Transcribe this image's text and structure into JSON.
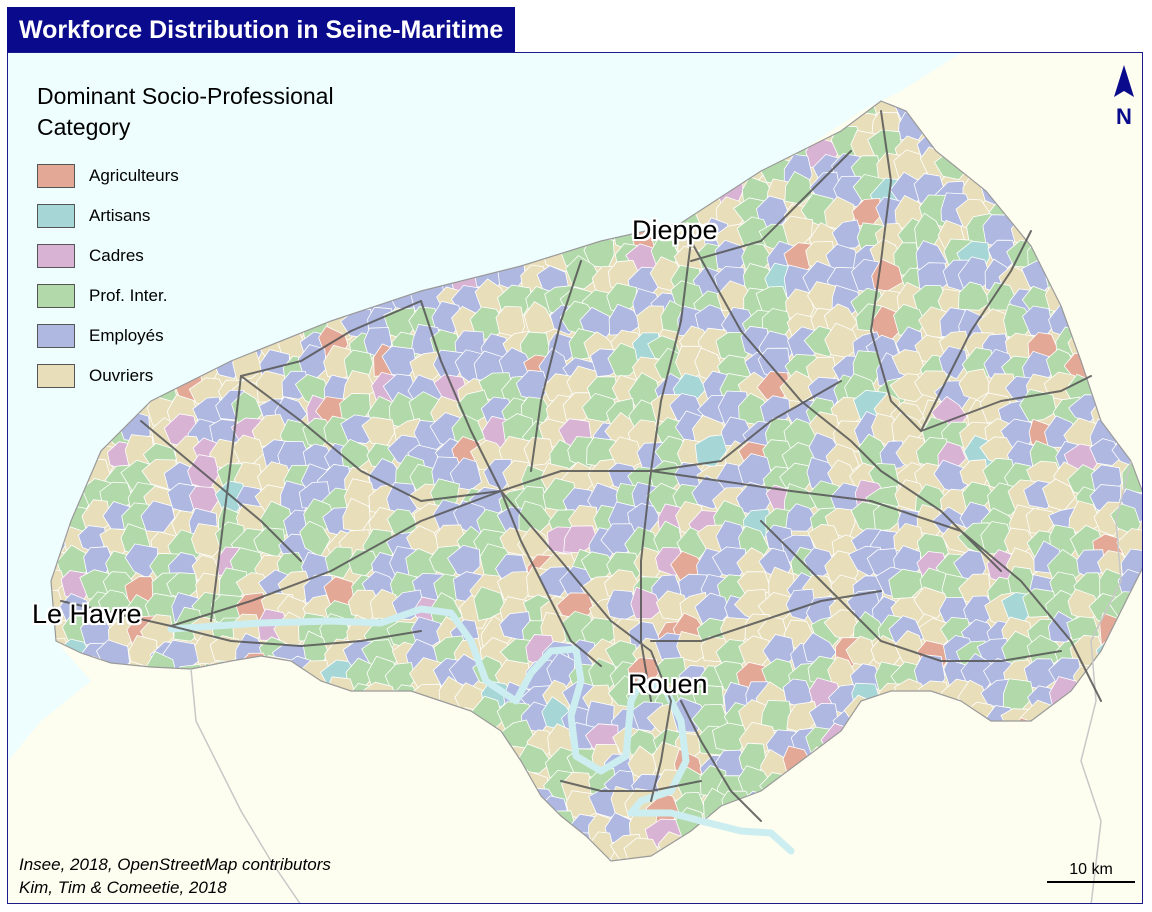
{
  "title": "Workforce Distribution in Seine-Maritime",
  "legend": {
    "title": "Dominant Socio-Professional Category",
    "items": [
      {
        "label": "Agriculteurs",
        "color": "#e3a996"
      },
      {
        "label": "Artisans",
        "color": "#a6d6d6"
      },
      {
        "label": "Cadres",
        "color": "#d9b3d4"
      },
      {
        "label": "Prof. Inter.",
        "color": "#b2d9a9"
      },
      {
        "label": "Employés",
        "color": "#aeb8e0"
      },
      {
        "label": "Ouvriers",
        "color": "#e8deba"
      }
    ]
  },
  "cities": [
    "Dieppe",
    "Le Havre",
    "Rouen"
  ],
  "north_arrow": "N",
  "credits": [
    "Insee, 2018, OpenStreetMap contributors",
    "Kim, Tim & Comeetie, 2018"
  ],
  "scale_bar": "10 km",
  "colors": {
    "sea": "#eefdfd",
    "land_outside": "#fdfdf0",
    "roads": "#555555",
    "title_bg": "#0a0a8c",
    "river": "#cdeef0"
  }
}
